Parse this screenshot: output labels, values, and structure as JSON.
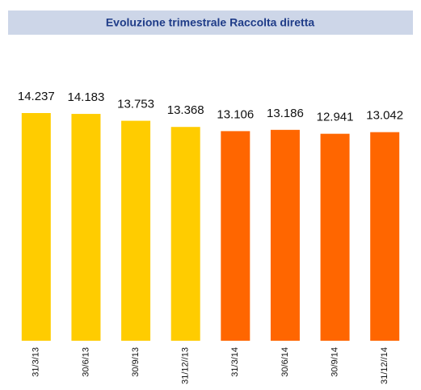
{
  "chart_data": {
    "type": "bar",
    "title": "Evoluzione trimestrale Raccolta diretta",
    "categories": [
      "31/3/13",
      "30/6/13",
      "30/9/13",
      "31/12//13",
      "31/3/14",
      "30/6/14",
      "30/9/14",
      "31/12//14"
    ],
    "values": [
      14237,
      14183,
      13753,
      13368,
      13106,
      13186,
      12941,
      13042
    ],
    "value_labels": [
      "14.237",
      "14.183",
      "13.753",
      "13.368",
      "13.106",
      "13.186",
      "12.941",
      "13.042"
    ],
    "colors": [
      "#ffcc00",
      "#ffcc00",
      "#ffcc00",
      "#ffcc00",
      "#ff6600",
      "#ff6600",
      "#ff6600",
      "#ff6600"
    ]
  }
}
